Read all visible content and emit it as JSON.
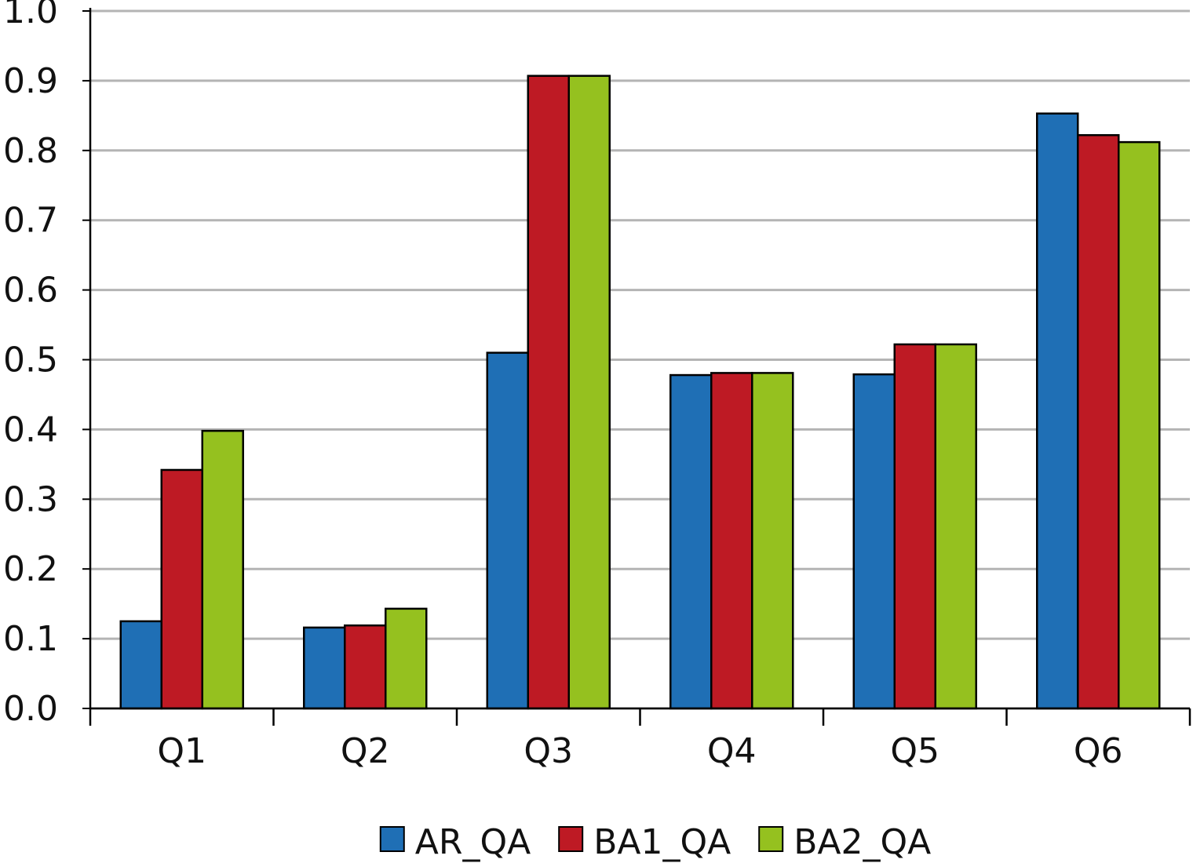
{
  "chart_data": {
    "type": "bar",
    "categories": [
      "Q1",
      "Q2",
      "Q3",
      "Q4",
      "Q5",
      "Q6"
    ],
    "series": [
      {
        "name": "AR_QA",
        "color": "#1f6fb5",
        "values": [
          0.125,
          0.116,
          0.51,
          0.478,
          0.479,
          0.853
        ]
      },
      {
        "name": "BA1_QA",
        "color": "#be1a24",
        "values": [
          0.342,
          0.119,
          0.907,
          0.481,
          0.522,
          0.822
        ]
      },
      {
        "name": "BA2_QA",
        "color": "#95c11f",
        "values": [
          0.398,
          0.143,
          0.907,
          0.481,
          0.522,
          0.812
        ]
      }
    ],
    "ylim": [
      0,
      1
    ],
    "yticks": [
      {
        "value": 0,
        "label": "0.0"
      },
      0.1,
      0.2,
      0.3,
      0.4,
      0.5,
      0.6,
      0.7,
      0.8,
      0.9,
      {
        "value": 1,
        "label": "1.0"
      }
    ],
    "grid": true,
    "legend": "bottom"
  }
}
